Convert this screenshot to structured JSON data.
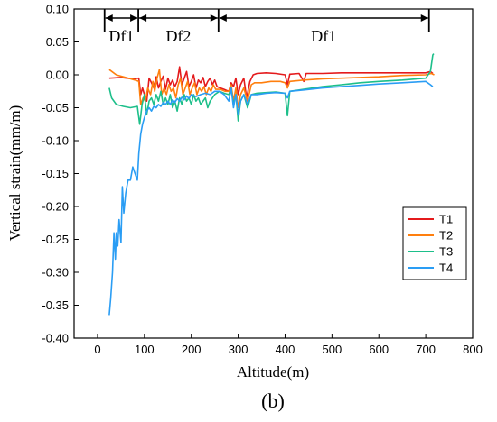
{
  "chart_data": {
    "type": "line",
    "xlabel": "Altitude(m)",
    "ylabel": "Vertical strain(mm/m)",
    "panel_label": "(b)",
    "xlim": [
      -50,
      800
    ],
    "ylim": [
      -0.4,
      0.1
    ],
    "x_ticks": [
      0,
      100,
      200,
      300,
      400,
      500,
      600,
      700,
      800
    ],
    "y_ticks": [
      -0.4,
      -0.35,
      -0.3,
      -0.25,
      -0.2,
      -0.15,
      -0.1,
      -0.05,
      0.0,
      0.05,
      0.1
    ],
    "x_tick_labels": [
      "0",
      "100",
      "200",
      "300",
      "400",
      "500",
      "600",
      "700",
      "800"
    ],
    "y_tick_labels": [
      "-0.40",
      "-0.35",
      "-0.30",
      "-0.25",
      "-0.20",
      "-0.15",
      "-0.10",
      "-0.05",
      "0.00",
      "0.05",
      "0.10"
    ],
    "legend_position": "right-middle",
    "zones": [
      {
        "label": "Df1",
        "x_start": 15,
        "x_end": 87
      },
      {
        "label": "Df2",
        "x_start": 87,
        "x_end": 258
      },
      {
        "label": "Df1",
        "x_start": 258,
        "x_end": 707
      }
    ],
    "series": [
      {
        "name": "T1",
        "color": "#e41a1c",
        "points": [
          [
            25,
            -0.005
          ],
          [
            50,
            -0.004
          ],
          [
            75,
            -0.006
          ],
          [
            88,
            -0.005
          ],
          [
            92,
            -0.03
          ],
          [
            96,
            -0.02
          ],
          [
            100,
            -0.03
          ],
          [
            105,
            -0.04
          ],
          [
            110,
            -0.005
          ],
          [
            115,
            -0.012
          ],
          [
            120,
            -0.02
          ],
          [
            125,
            -0.003
          ],
          [
            130,
            -0.02
          ],
          [
            135,
            -0.01
          ],
          [
            140,
            -0.002
          ],
          [
            145,
            -0.022
          ],
          [
            150,
            -0.005
          ],
          [
            155,
            -0.015
          ],
          [
            160,
            -0.008
          ],
          [
            165,
            -0.018
          ],
          [
            170,
            -0.01
          ],
          [
            175,
            0.012
          ],
          [
            180,
            -0.015
          ],
          [
            185,
            -0.005
          ],
          [
            190,
            0.005
          ],
          [
            195,
            -0.018
          ],
          [
            200,
            -0.01
          ],
          [
            205,
            0.0
          ],
          [
            210,
            -0.02
          ],
          [
            215,
            -0.008
          ],
          [
            220,
            -0.012
          ],
          [
            225,
            -0.004
          ],
          [
            230,
            -0.018
          ],
          [
            235,
            -0.01
          ],
          [
            240,
            -0.005
          ],
          [
            245,
            -0.015
          ],
          [
            250,
            -0.008
          ],
          [
            255,
            -0.018
          ],
          [
            262,
            -0.02
          ],
          [
            270,
            -0.022
          ],
          [
            280,
            -0.025
          ],
          [
            285,
            -0.012
          ],
          [
            290,
            -0.018
          ],
          [
            295,
            -0.005
          ],
          [
            300,
            -0.03
          ],
          [
            305,
            -0.015
          ],
          [
            312,
            -0.005
          ],
          [
            318,
            -0.035
          ],
          [
            325,
            -0.01
          ],
          [
            332,
            0.0
          ],
          [
            340,
            0.002
          ],
          [
            360,
            0.003
          ],
          [
            380,
            0.002
          ],
          [
            400,
            0.0
          ],
          [
            405,
            -0.015
          ],
          [
            410,
            0.001
          ],
          [
            430,
            0.002
          ],
          [
            440,
            -0.01
          ],
          [
            445,
            0.002
          ],
          [
            480,
            0.002
          ],
          [
            520,
            0.003
          ],
          [
            560,
            0.003
          ],
          [
            600,
            0.003
          ],
          [
            650,
            0.003
          ],
          [
            700,
            0.003
          ],
          [
            710,
            0.005
          ],
          [
            715,
            0.002
          ]
        ]
      },
      {
        "name": "T2",
        "color": "#ff7f0e",
        "points": [
          [
            25,
            0.008
          ],
          [
            40,
            0.0
          ],
          [
            60,
            -0.004
          ],
          [
            80,
            -0.008
          ],
          [
            88,
            -0.01
          ],
          [
            92,
            -0.045
          ],
          [
            97,
            -0.035
          ],
          [
            102,
            -0.04
          ],
          [
            107,
            -0.02
          ],
          [
            113,
            -0.03
          ],
          [
            118,
            -0.01
          ],
          [
            122,
            -0.025
          ],
          [
            127,
            -0.005
          ],
          [
            132,
            0.008
          ],
          [
            137,
            -0.03
          ],
          [
            142,
            -0.02
          ],
          [
            147,
            -0.03
          ],
          [
            152,
            -0.015
          ],
          [
            157,
            -0.025
          ],
          [
            162,
            -0.02
          ],
          [
            167,
            -0.035
          ],
          [
            172,
            -0.015
          ],
          [
            177,
            -0.005
          ],
          [
            182,
            -0.03
          ],
          [
            187,
            -0.02
          ],
          [
            192,
            -0.01
          ],
          [
            197,
            -0.03
          ],
          [
            202,
            -0.02
          ],
          [
            207,
            -0.012
          ],
          [
            212,
            -0.03
          ],
          [
            217,
            -0.02
          ],
          [
            222,
            -0.025
          ],
          [
            227,
            -0.018
          ],
          [
            232,
            -0.03
          ],
          [
            237,
            -0.02
          ],
          [
            242,
            -0.025
          ],
          [
            247,
            -0.015
          ],
          [
            252,
            -0.022
          ],
          [
            262,
            -0.022
          ],
          [
            272,
            -0.025
          ],
          [
            280,
            -0.025
          ],
          [
            285,
            -0.015
          ],
          [
            290,
            -0.04
          ],
          [
            295,
            -0.02
          ],
          [
            300,
            -0.05
          ],
          [
            305,
            -0.03
          ],
          [
            312,
            -0.02
          ],
          [
            320,
            -0.04
          ],
          [
            328,
            -0.015
          ],
          [
            335,
            -0.012
          ],
          [
            350,
            -0.012
          ],
          [
            370,
            -0.01
          ],
          [
            390,
            -0.01
          ],
          [
            400,
            -0.012
          ],
          [
            405,
            -0.02
          ],
          [
            410,
            -0.01
          ],
          [
            440,
            -0.008
          ],
          [
            480,
            -0.006
          ],
          [
            520,
            -0.005
          ],
          [
            560,
            -0.004
          ],
          [
            600,
            -0.003
          ],
          [
            650,
            -0.001
          ],
          [
            700,
            0.0
          ],
          [
            712,
            0.002
          ],
          [
            718,
            0.0
          ]
        ]
      },
      {
        "name": "T3",
        "color": "#1dbf8a",
        "points": [
          [
            25,
            -0.02
          ],
          [
            30,
            -0.035
          ],
          [
            40,
            -0.045
          ],
          [
            55,
            -0.048
          ],
          [
            70,
            -0.05
          ],
          [
            85,
            -0.048
          ],
          [
            90,
            -0.075
          ],
          [
            95,
            -0.045
          ],
          [
            100,
            -0.03
          ],
          [
            105,
            -0.06
          ],
          [
            110,
            -0.04
          ],
          [
            115,
            -0.035
          ],
          [
            120,
            -0.045
          ],
          [
            125,
            -0.03
          ],
          [
            130,
            -0.04
          ],
          [
            135,
            -0.025
          ],
          [
            140,
            -0.045
          ],
          [
            145,
            -0.035
          ],
          [
            150,
            -0.045
          ],
          [
            155,
            -0.03
          ],
          [
            160,
            -0.05
          ],
          [
            165,
            -0.04
          ],
          [
            170,
            -0.055
          ],
          [
            175,
            -0.035
          ],
          [
            180,
            -0.045
          ],
          [
            185,
            -0.03
          ],
          [
            190,
            -0.04
          ],
          [
            195,
            -0.035
          ],
          [
            200,
            -0.045
          ],
          [
            205,
            -0.03
          ],
          [
            210,
            -0.04
          ],
          [
            215,
            -0.035
          ],
          [
            220,
            -0.045
          ],
          [
            225,
            -0.04
          ],
          [
            230,
            -0.035
          ],
          [
            235,
            -0.05
          ],
          [
            240,
            -0.04
          ],
          [
            245,
            -0.035
          ],
          [
            250,
            -0.03
          ],
          [
            260,
            -0.025
          ],
          [
            270,
            -0.028
          ],
          [
            280,
            -0.03
          ],
          [
            285,
            -0.02
          ],
          [
            290,
            -0.045
          ],
          [
            295,
            -0.03
          ],
          [
            300,
            -0.07
          ],
          [
            305,
            -0.04
          ],
          [
            312,
            -0.03
          ],
          [
            320,
            -0.05
          ],
          [
            328,
            -0.03
          ],
          [
            340,
            -0.028
          ],
          [
            360,
            -0.027
          ],
          [
            380,
            -0.026
          ],
          [
            400,
            -0.028
          ],
          [
            405,
            -0.062
          ],
          [
            410,
            -0.025
          ],
          [
            440,
            -0.022
          ],
          [
            480,
            -0.018
          ],
          [
            520,
            -0.015
          ],
          [
            560,
            -0.012
          ],
          [
            600,
            -0.01
          ],
          [
            650,
            -0.008
          ],
          [
            700,
            -0.005
          ],
          [
            710,
            0.005
          ],
          [
            715,
            0.03
          ],
          [
            717,
            0.032
          ]
        ]
      },
      {
        "name": "T4",
        "color": "#2a9df4",
        "points": [
          [
            25,
            -0.365
          ],
          [
            28,
            -0.34
          ],
          [
            32,
            -0.3
          ],
          [
            35,
            -0.24
          ],
          [
            38,
            -0.28
          ],
          [
            40,
            -0.24
          ],
          [
            43,
            -0.26
          ],
          [
            46,
            -0.22
          ],
          [
            50,
            -0.255
          ],
          [
            53,
            -0.17
          ],
          [
            56,
            -0.21
          ],
          [
            60,
            -0.18
          ],
          [
            65,
            -0.16
          ],
          [
            70,
            -0.16
          ],
          [
            75,
            -0.14
          ],
          [
            80,
            -0.15
          ],
          [
            85,
            -0.16
          ],
          [
            88,
            -0.12
          ],
          [
            92,
            -0.09
          ],
          [
            96,
            -0.075
          ],
          [
            100,
            -0.065
          ],
          [
            105,
            -0.055
          ],
          [
            110,
            -0.05
          ],
          [
            115,
            -0.055
          ],
          [
            120,
            -0.048
          ],
          [
            125,
            -0.05
          ],
          [
            130,
            -0.045
          ],
          [
            135,
            -0.048
          ],
          [
            140,
            -0.042
          ],
          [
            145,
            -0.045
          ],
          [
            150,
            -0.04
          ],
          [
            155,
            -0.045
          ],
          [
            160,
            -0.038
          ],
          [
            165,
            -0.042
          ],
          [
            170,
            -0.036
          ],
          [
            175,
            -0.04
          ],
          [
            180,
            -0.034
          ],
          [
            185,
            -0.038
          ],
          [
            190,
            -0.032
          ],
          [
            195,
            -0.036
          ],
          [
            200,
            -0.03
          ],
          [
            210,
            -0.033
          ],
          [
            220,
            -0.03
          ],
          [
            230,
            -0.028
          ],
          [
            240,
            -0.03
          ],
          [
            250,
            -0.025
          ],
          [
            260,
            -0.025
          ],
          [
            270,
            -0.03
          ],
          [
            280,
            -0.04
          ],
          [
            285,
            -0.02
          ],
          [
            290,
            -0.05
          ],
          [
            295,
            -0.03
          ],
          [
            300,
            -0.06
          ],
          [
            305,
            -0.04
          ],
          [
            312,
            -0.03
          ],
          [
            320,
            -0.045
          ],
          [
            328,
            -0.03
          ],
          [
            340,
            -0.03
          ],
          [
            360,
            -0.028
          ],
          [
            380,
            -0.027
          ],
          [
            400,
            -0.028
          ],
          [
            405,
            -0.035
          ],
          [
            410,
            -0.025
          ],
          [
            440,
            -0.023
          ],
          [
            480,
            -0.02
          ],
          [
            520,
            -0.018
          ],
          [
            560,
            -0.016
          ],
          [
            600,
            -0.014
          ],
          [
            650,
            -0.012
          ],
          [
            700,
            -0.01
          ],
          [
            710,
            -0.015
          ],
          [
            715,
            -0.018
          ]
        ]
      }
    ]
  }
}
